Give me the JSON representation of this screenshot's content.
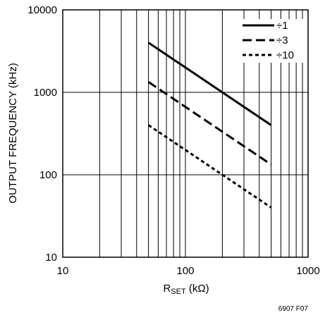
{
  "chart_data": {
    "type": "line",
    "xscale": "log",
    "yscale": "log",
    "xlim": [
      10,
      1000
    ],
    "ylim": [
      10,
      10000
    ],
    "xticks": [
      "10",
      "100",
      "1000"
    ],
    "yticks": [
      "10",
      "100",
      "1000",
      "10000"
    ],
    "xlabel_main": "R",
    "xlabel_sub": "SET",
    "xlabel_unit": " (kΩ)",
    "ylabel": "OUTPUT FREQUENCY (kHz)",
    "grid": "log grid (all decades, minor lines on x)",
    "legend_position": "top-right",
    "series": [
      {
        "name": "÷1",
        "dash": "solid",
        "x": [
          50,
          500
        ],
        "y": [
          4000,
          400
        ]
      },
      {
        "name": "÷3",
        "dash": "dashed",
        "x": [
          50,
          500
        ],
        "y": [
          1333,
          133
        ]
      },
      {
        "name": "÷10",
        "dash": "dotted",
        "x": [
          50,
          500
        ],
        "y": [
          400,
          40
        ]
      }
    ],
    "figure_code": "6907 F07"
  }
}
